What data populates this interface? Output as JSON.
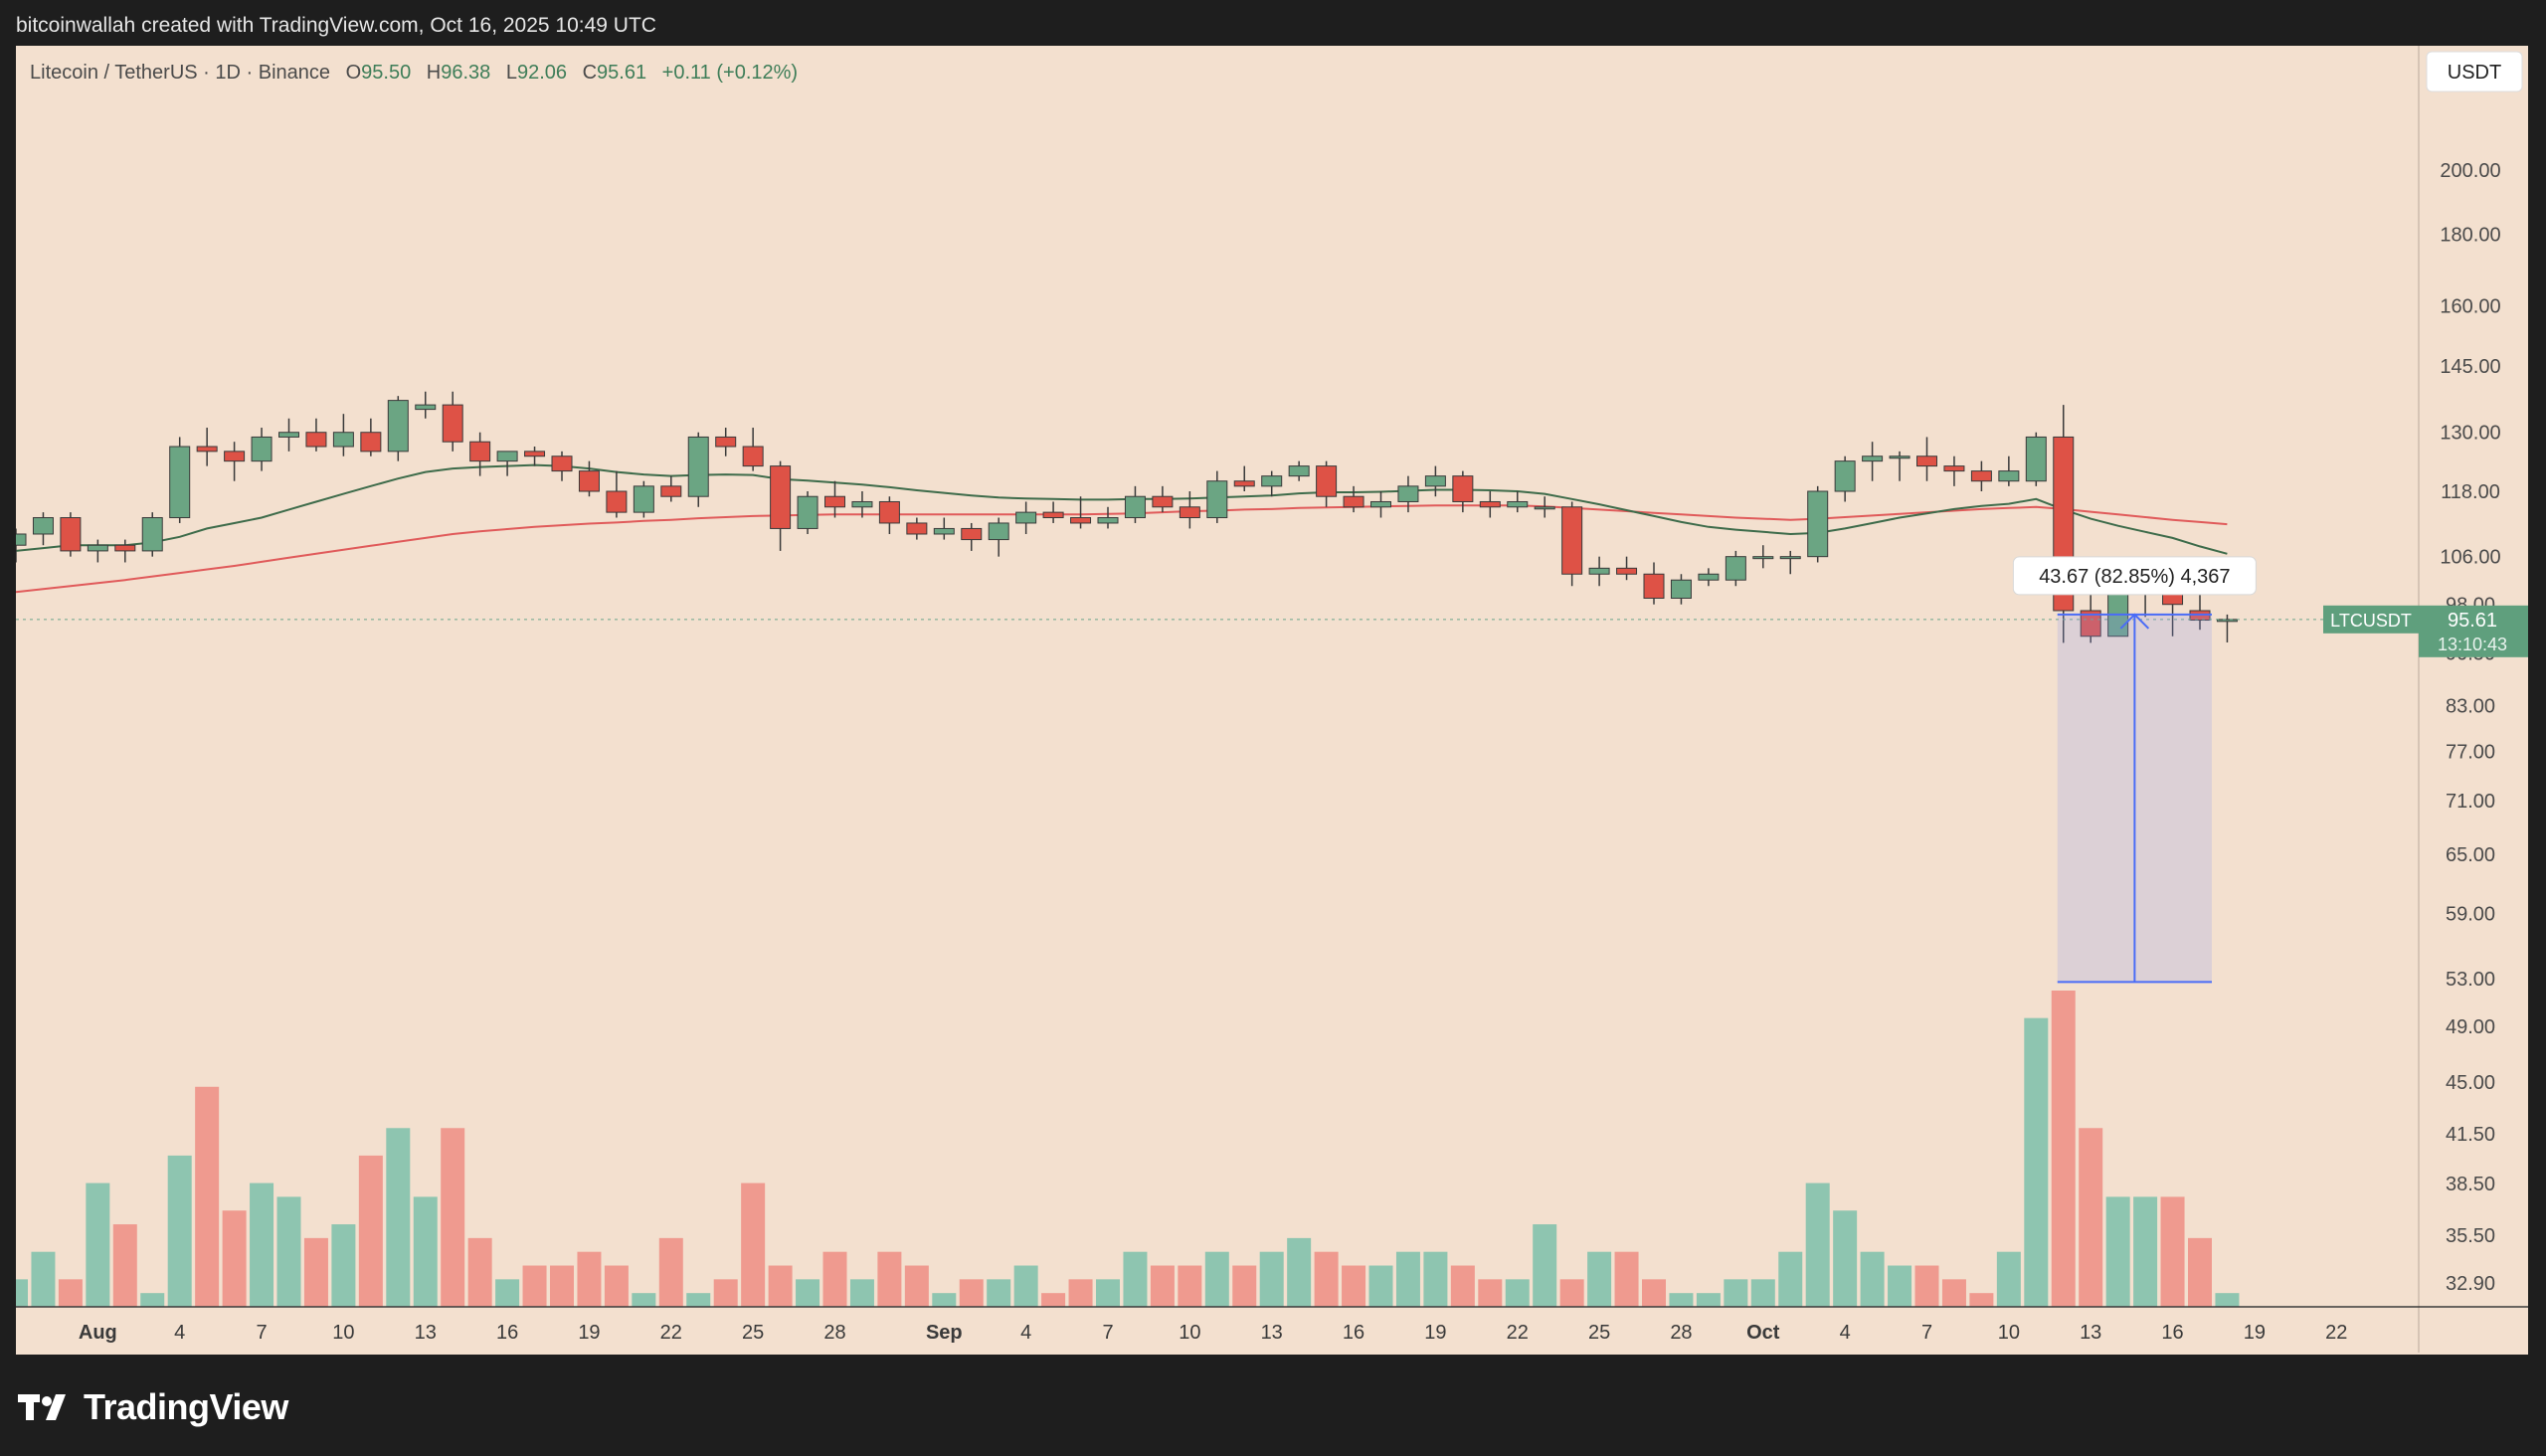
{
  "header": {
    "attribution": "bitcoinwallah created with TradingView.com, Oct 16, 2025 10:49 UTC"
  },
  "legend": {
    "symbol": "Litecoin / TetherUS · 1D · Binance",
    "o_label": "O",
    "o": "95.50",
    "h_label": "H",
    "h": "96.38",
    "l_label": "L",
    "l": "92.06",
    "c_label": "C",
    "c": "95.61",
    "change": "+0.11 (+0.12%)"
  },
  "currency_button": "USDT",
  "price_tag": {
    "symbol": "LTCUSDT",
    "price": "95.61",
    "countdown": "13:10:43"
  },
  "measure_label": "43.67 (82.85%) 4,367",
  "footer": {
    "brand": "TradingView"
  },
  "colors": {
    "background": "#f3e0cf",
    "up": "#6ba583",
    "down": "#de5246",
    "volume_up": "#8ec5b0",
    "volume_down": "#ef9a8f",
    "ma_short": "#3d6b4a",
    "ma_long": "#e05a5a",
    "measure": "#4a6cf7"
  },
  "chart_data": {
    "type": "candlestick",
    "y_scale": "log",
    "y_ticks": [
      "200.00",
      "180.00",
      "160.00",
      "145.00",
      "130.00",
      "118.00",
      "106.00",
      "98.00",
      "90.50",
      "83.00",
      "77.00",
      "71.00",
      "65.00",
      "59.00",
      "53.00",
      "49.00",
      "45.00",
      "41.50",
      "38.50",
      "35.50",
      "32.90"
    ],
    "x_ticks": [
      "Aug",
      "4",
      "7",
      "10",
      "13",
      "16",
      "19",
      "22",
      "25",
      "28",
      "Sep",
      "4",
      "7",
      "10",
      "13",
      "16",
      "19",
      "22",
      "25",
      "28",
      "Oct",
      "4",
      "7",
      "10",
      "13",
      "16",
      "19",
      "22"
    ],
    "start_date": "2025-07-29",
    "candles": [
      [
        108,
        111,
        105,
        110
      ],
      [
        110,
        114,
        108,
        113
      ],
      [
        113,
        114,
        106,
        107
      ],
      [
        107,
        109,
        105,
        108
      ],
      [
        108,
        109,
        105,
        107
      ],
      [
        107,
        114,
        106,
        113
      ],
      [
        113,
        129,
        112,
        127
      ],
      [
        127,
        131,
        123,
        126
      ],
      [
        126,
        128,
        120,
        124
      ],
      [
        124,
        131,
        122,
        129
      ],
      [
        129,
        133,
        126,
        130
      ],
      [
        130,
        133,
        126,
        127
      ],
      [
        127,
        134,
        125,
        130
      ],
      [
        130,
        133,
        125,
        126
      ],
      [
        126,
        138,
        124,
        137
      ],
      [
        135,
        139,
        133,
        136
      ],
      [
        136,
        139,
        126,
        128
      ],
      [
        128,
        130,
        121,
        124
      ],
      [
        124,
        126,
        121,
        126
      ],
      [
        126,
        127,
        123,
        125
      ],
      [
        125,
        126,
        120,
        122
      ],
      [
        122,
        124,
        117,
        118
      ],
      [
        118,
        122,
        113,
        114
      ],
      [
        114,
        120,
        113,
        119
      ],
      [
        119,
        121,
        116,
        117
      ],
      [
        117,
        130,
        115,
        129
      ],
      [
        129,
        131,
        125,
        127
      ],
      [
        127,
        131,
        122,
        123
      ],
      [
        123,
        124,
        107,
        111
      ],
      [
        111,
        118,
        110,
        117
      ],
      [
        117,
        120,
        113,
        115
      ],
      [
        115,
        118,
        113,
        116
      ],
      [
        116,
        117,
        110,
        112
      ],
      [
        112,
        113,
        109,
        110
      ],
      [
        110,
        113,
        109,
        111
      ],
      [
        111,
        112,
        107,
        109
      ],
      [
        109,
        113,
        106,
        112
      ],
      [
        112,
        116,
        110,
        114
      ],
      [
        114,
        116,
        112,
        113
      ],
      [
        113,
        117,
        111,
        112
      ],
      [
        112,
        115,
        111,
        113
      ],
      [
        113,
        119,
        112,
        117
      ],
      [
        117,
        119,
        114,
        115
      ],
      [
        115,
        118,
        111,
        113
      ],
      [
        113,
        122,
        112,
        120
      ],
      [
        120,
        123,
        118,
        119
      ],
      [
        119,
        122,
        117,
        121
      ],
      [
        121,
        124,
        120,
        123
      ],
      [
        123,
        124,
        115,
        117
      ],
      [
        117,
        119,
        114,
        115
      ],
      [
        115,
        118,
        113,
        116
      ],
      [
        116,
        121,
        114,
        119
      ],
      [
        119,
        123,
        117,
        121
      ],
      [
        121,
        122,
        114,
        116
      ],
      [
        116,
        118,
        113,
        115
      ],
      [
        115,
        118,
        114,
        116
      ],
      [
        115,
        117,
        113,
        115
      ],
      [
        115,
        116,
        101,
        103
      ],
      [
        103,
        106,
        101,
        104
      ],
      [
        104,
        106,
        102,
        103
      ],
      [
        103,
        105,
        98,
        99
      ],
      [
        99,
        103,
        98,
        102
      ],
      [
        102,
        104,
        101,
        103
      ],
      [
        102,
        107,
        101,
        106
      ],
      [
        106,
        108,
        104,
        106
      ],
      [
        106,
        107,
        103,
        106
      ],
      [
        106,
        119,
        105,
        118
      ],
      [
        118,
        125,
        116,
        124
      ],
      [
        124,
        128,
        120,
        125
      ],
      [
        125,
        126,
        120,
        125
      ],
      [
        125,
        129,
        120,
        123
      ],
      [
        123,
        125,
        119,
        122
      ],
      [
        122,
        124,
        118,
        120
      ],
      [
        120,
        125,
        119,
        122
      ],
      [
        120,
        130,
        119,
        129
      ],
      [
        129,
        136,
        92,
        97
      ],
      [
        97,
        100,
        92,
        93
      ],
      [
        93,
        101,
        93,
        100
      ],
      [
        100,
        102,
        96,
        101
      ],
      [
        101,
        102,
        93,
        98
      ],
      [
        97,
        101,
        94,
        95.5
      ],
      [
        95.5,
        96.38,
        92.06,
        95.61
      ]
    ],
    "volume": [
      31,
      33,
      31,
      38,
      35,
      30,
      40,
      45,
      36,
      38,
      37,
      34,
      35,
      40,
      42,
      37,
      42,
      34,
      31,
      32,
      32,
      33,
      32,
      30,
      34,
      30,
      31,
      38,
      32,
      31,
      33,
      31,
      33,
      32,
      30,
      31,
      31,
      32,
      30,
      31,
      31,
      33,
      32,
      32,
      33,
      32,
      33,
      34,
      33,
      32,
      32,
      33,
      33,
      32,
      31,
      31,
      35,
      31,
      33,
      33,
      31,
      30,
      30,
      31,
      31,
      33,
      38,
      36,
      33,
      32,
      32,
      31,
      30,
      33,
      50,
      52,
      42,
      37,
      37,
      37,
      34,
      30
    ],
    "ma_short": [
      107,
      107.5,
      108,
      108,
      108,
      108.5,
      109.5,
      111,
      112,
      113,
      114.5,
      116,
      117.5,
      119,
      120.5,
      121.8,
      122.5,
      122.8,
      123,
      123.2,
      123,
      122.5,
      121.8,
      121.3,
      121,
      121.2,
      121.3,
      121.2,
      120.4,
      120.1,
      119.7,
      119.3,
      118.8,
      118.2,
      117.7,
      117.2,
      116.8,
      116.6,
      116.5,
      116.4,
      116.4,
      116.5,
      116.5,
      116.6,
      116.8,
      117,
      117.2,
      117.6,
      117.8,
      117.8,
      117.9,
      118.1,
      118.3,
      118.3,
      118.2,
      118,
      117.5,
      116.5,
      115.5,
      114.4,
      113.3,
      112.2,
      111.3,
      110.8,
      110.4,
      110,
      110.2,
      111,
      112,
      113,
      113.8,
      114.6,
      115.2,
      115.6,
      116.5,
      114.5,
      112.8,
      111.5,
      110.4,
      109.3,
      107.8,
      106.5
    ],
    "ma_long": [
      100,
      100.5,
      101,
      101.5,
      102,
      102.6,
      103.2,
      103.8,
      104.4,
      105.1,
      105.8,
      106.5,
      107.2,
      107.9,
      108.6,
      109.3,
      110,
      110.5,
      110.9,
      111.3,
      111.6,
      111.9,
      112.1,
      112.4,
      112.6,
      112.9,
      113.1,
      113.3,
      113.4,
      113.5,
      113.6,
      113.6,
      113.6,
      113.6,
      113.6,
      113.6,
      113.6,
      113.6,
      113.6,
      113.6,
      113.7,
      113.8,
      114,
      114.2,
      114.3,
      114.5,
      114.6,
      114.8,
      114.9,
      115,
      115.1,
      115.2,
      115.3,
      115.3,
      115.3,
      115.3,
      115.1,
      114.8,
      114.5,
      114.2,
      113.9,
      113.6,
      113.3,
      113,
      112.8,
      112.6,
      112.8,
      113.1,
      113.4,
      113.7,
      114,
      114.3,
      114.6,
      114.8,
      115,
      114.6,
      114.1,
      113.6,
      113.1,
      112.6,
      112.2,
      111.8
    ],
    "measure": {
      "from": 96.38,
      "to": 52.71,
      "change": "43.67",
      "percent": "82.85%",
      "bars": "4,367"
    }
  }
}
